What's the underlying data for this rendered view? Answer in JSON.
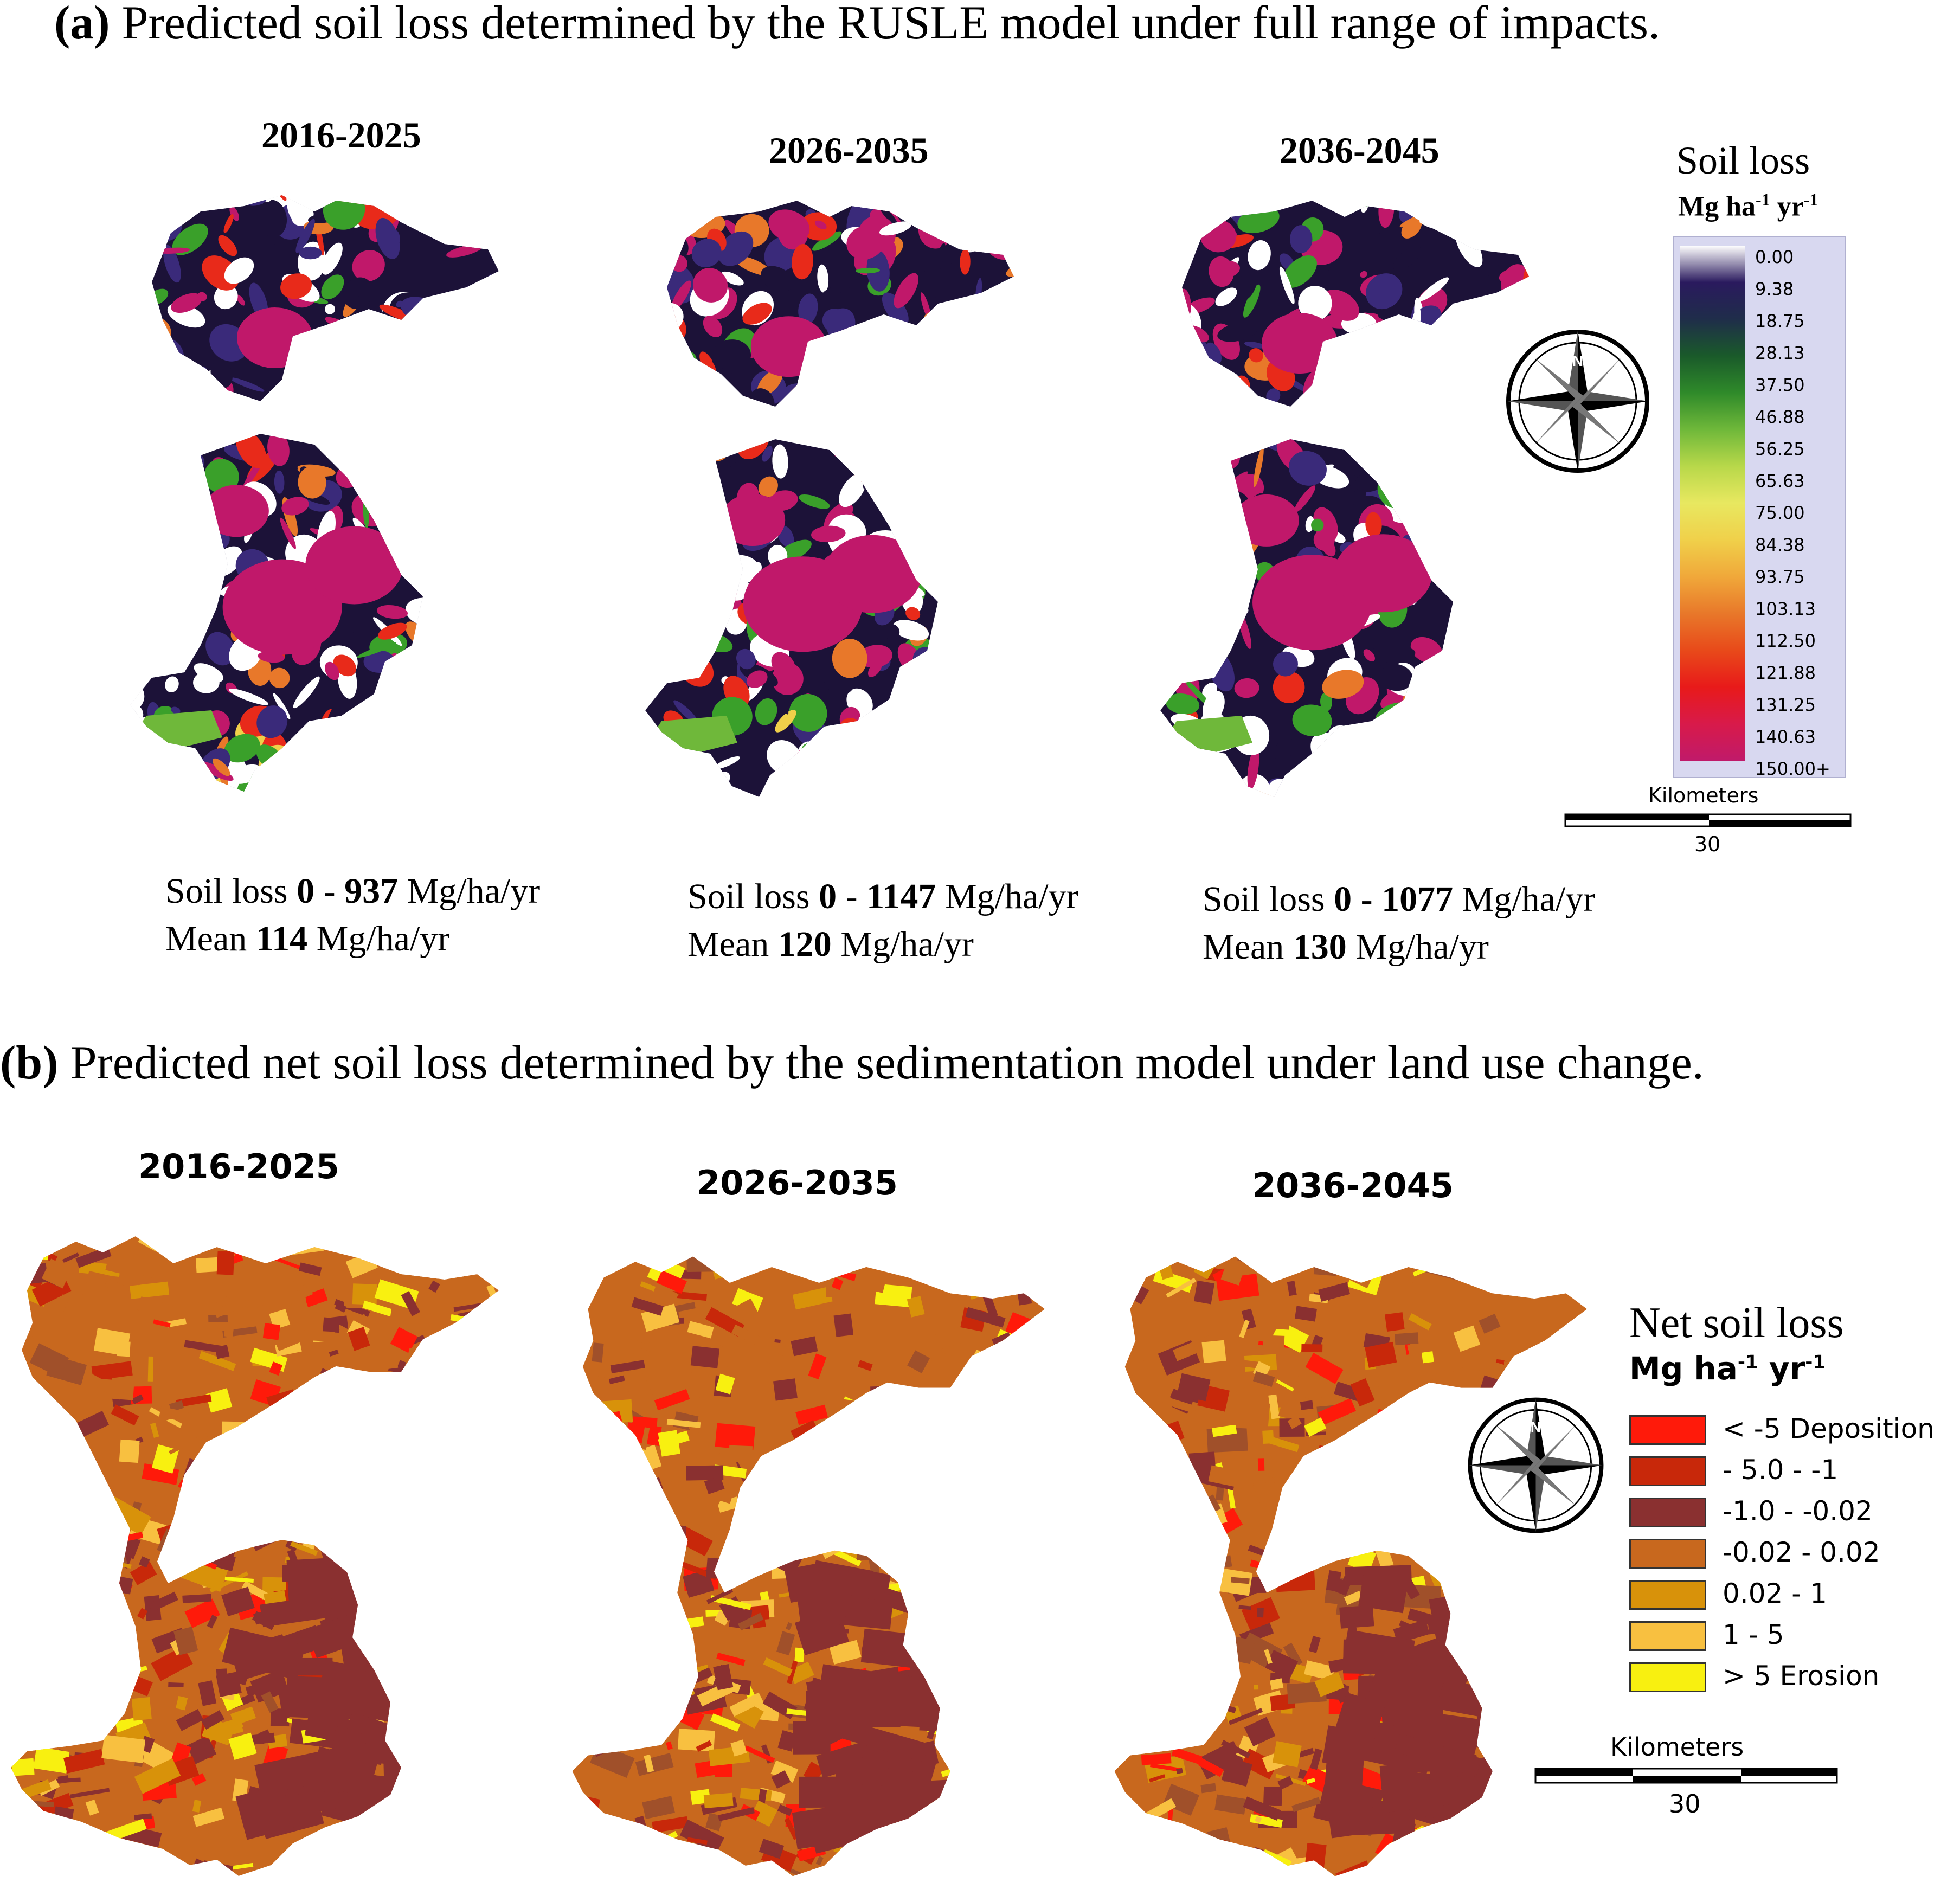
{
  "panel_a": {
    "title_label": "(a)",
    "title_text": "Predicted soil loss determined by the RUSLE model under full range of impacts.",
    "maps": [
      {
        "period": "2016-2025",
        "range_prefix": "Soil loss",
        "range_min": "0",
        "range_sep": "-",
        "range_max": "937",
        "range_unit": "Mg/ha/yr",
        "mean_label": "Mean",
        "mean_value": "114",
        "mean_unit": "Mg/ha/yr"
      },
      {
        "period": "2026-2035",
        "range_prefix": "Soil loss",
        "range_min": "0",
        "range_sep": "-",
        "range_max": "1147",
        "range_unit": "Mg/ha/yr",
        "mean_label": "Mean",
        "mean_value": "120",
        "mean_unit": "Mg/ha/yr"
      },
      {
        "period": "2036-2045",
        "range_prefix": "Soil loss",
        "range_min": "0",
        "range_sep": "-",
        "range_max": "1077",
        "range_unit": "Mg/ha/yr",
        "mean_label": "Mean",
        "mean_value": "130",
        "mean_unit": "Mg/ha/yr"
      }
    ],
    "legend": {
      "title": "Soil loss",
      "unit_main": "Mg ha",
      "unit_exp1": "-1",
      "unit_mid": " yr",
      "unit_exp2": "-1",
      "ticks": [
        "0.00",
        "9.38",
        "18.75",
        "28.13",
        "37.50",
        "46.88",
        "56.25",
        "65.63",
        "75.00",
        "84.38",
        "93.75",
        "103.13",
        "112.50",
        "121.88",
        "131.25",
        "140.63",
        "150.00+"
      ],
      "colors": [
        "#ffffff",
        "#2a1a5e",
        "#1f2d4a",
        "#1a5a2a",
        "#2f8a2a",
        "#6fb83a",
        "#b8d84a",
        "#e8e860",
        "#f0d04a",
        "#f0a83a",
        "#e8782a",
        "#e84a1a",
        "#e81a1a",
        "#d81a4a",
        "#c01a6a"
      ]
    },
    "scale_bar": {
      "title": "Kilometers",
      "value": "30"
    },
    "map_colors": {
      "dark_navy": "#1c1238",
      "purple": "#3a2a7a",
      "magenta": "#c0186a",
      "white": "#ffffff",
      "green": "#3aa02a",
      "orange": "#e8782a",
      "red": "#e82a1a"
    }
  },
  "panel_b": {
    "title_label": "(b)",
    "title_text": "Predicted net soil loss determined by the sedimentation model under land use change.",
    "periods": [
      "2016-2025",
      "2026-2035",
      "2036-2045"
    ],
    "legend": {
      "title": "Net soil loss",
      "unit_main": "Mg  ha",
      "unit_exp1": "-1",
      "unit_mid": " yr",
      "unit_exp2": "-1",
      "classes": [
        {
          "label": "< -5  Deposition",
          "color": "#ff1a0a"
        },
        {
          "label": "- 5.0 - -1",
          "color": "#c8280a"
        },
        {
          "label": "-1.0 - -0.02",
          "color": "#8a3030"
        },
        {
          "label": "-0.02 - 0.02",
          "color": "#c8681e"
        },
        {
          "label": "0.02 - 1",
          "color": "#d8920a"
        },
        {
          "label": "1 - 5",
          "color": "#f8c040"
        },
        {
          "label": "> 5 Erosion",
          "color": "#f8f010"
        }
      ]
    },
    "scale_bar": {
      "title": "Kilometers",
      "value": "30"
    }
  }
}
